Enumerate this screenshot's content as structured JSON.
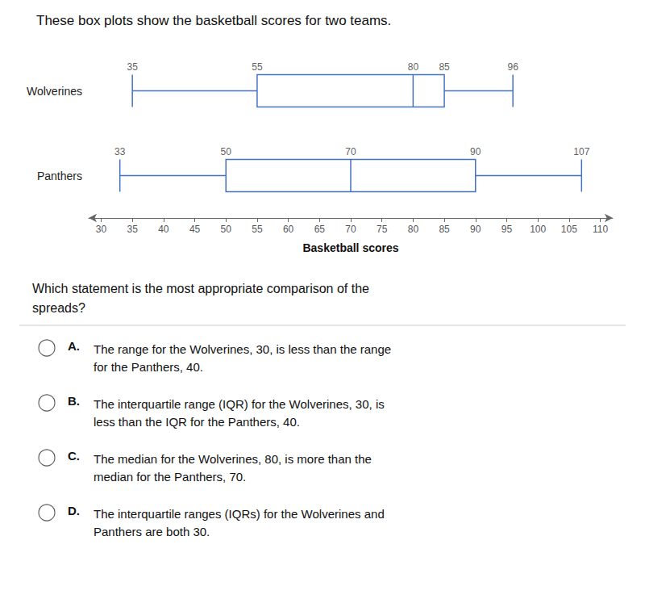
{
  "chart_data": {
    "type": "boxplot",
    "title": "These box plots show the basketball scores for two teams.",
    "xlabel": "Basketball scores",
    "orientation": "horizontal",
    "categories": [
      "Wolverines",
      "Panthers"
    ],
    "values": [
      [
        35,
        55,
        80,
        85,
        96
      ],
      [
        33,
        50,
        70,
        90,
        107
      ]
    ],
    "color": "#4472c4",
    "xlim": [
      28,
      112
    ],
    "xticks": [
      30,
      35,
      40,
      45,
      50,
      55,
      60,
      65,
      70,
      75,
      80,
      85,
      90,
      95,
      100,
      105,
      110
    ],
    "data_labels": true,
    "grid": false,
    "annotations": [
      {
        "text": "Which statement is the most appropriate comparison of the\nspreads?"
      },
      {
        "label": "A.",
        "text": "The range for the Wolverines, 30, is less than the range\nfor the Panthers, 40."
      },
      {
        "label": "B.",
        "text": "The interquartile range (IQR) for the Wolverines, 30, is\nless than the IQR for the Panthers, 40."
      },
      {
        "label": "C.",
        "text": "The median for the Wolverines, 80, is more than the\nmedian for the Panthers, 70."
      },
      {
        "label": "D.",
        "text": "The interquartile ranges (IQRs) for the Wolverines and\nPanthers are both 30."
      }
    ]
  }
}
